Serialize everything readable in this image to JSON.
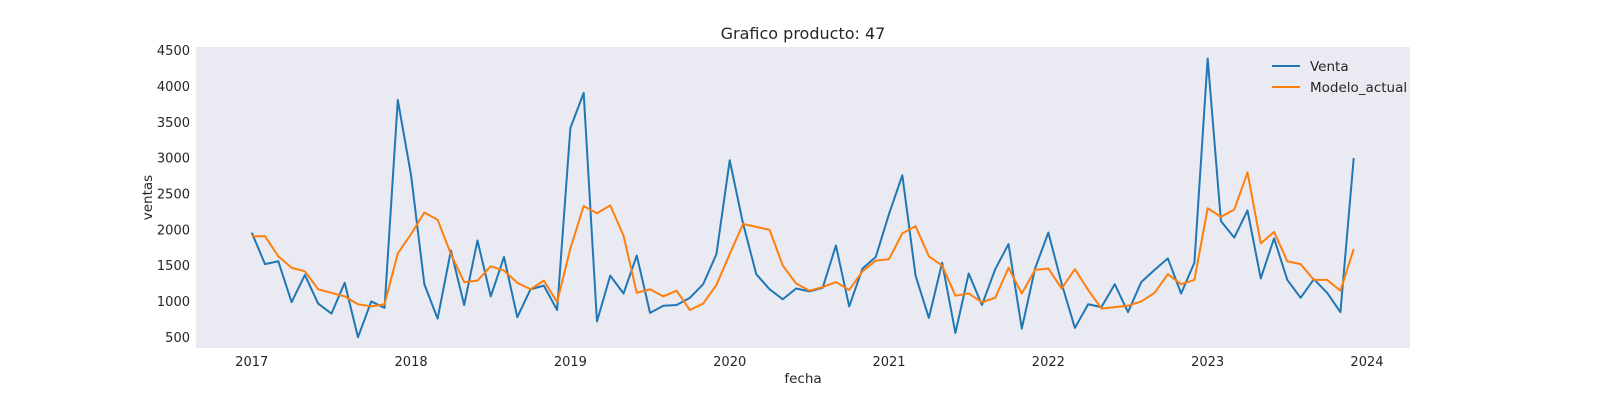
{
  "chart_data": {
    "type": "line",
    "title": "Grafico producto: 47",
    "xlabel": "fecha",
    "ylabel": "ventas",
    "x_start": "2017-01",
    "x_end": "2023-12",
    "x_frequency": "monthly",
    "xticks": [
      "2017",
      "2018",
      "2019",
      "2020",
      "2021",
      "2022",
      "2023",
      "2024"
    ],
    "yticks": [
      500,
      1000,
      1500,
      2000,
      2500,
      3000,
      3500,
      4000,
      4500
    ],
    "ylim": [
      350,
      4550
    ],
    "grid": false,
    "legend_position": "top-right",
    "background": "#eaeaf2",
    "series": [
      {
        "name": "Venta",
        "color": "#1f77b4",
        "values": [
          1960,
          1520,
          1560,
          990,
          1370,
          970,
          830,
          1260,
          500,
          1000,
          910,
          3810,
          2760,
          1240,
          760,
          1710,
          950,
          1850,
          1070,
          1620,
          780,
          1170,
          1220,
          880,
          3420,
          3910,
          720,
          1360,
          1110,
          1640,
          840,
          940,
          950,
          1050,
          1240,
          1660,
          2970,
          2090,
          1380,
          1170,
          1030,
          1180,
          1140,
          1190,
          1780,
          930,
          1460,
          1620,
          2220,
          2760,
          1360,
          770,
          1540,
          560,
          1390,
          950,
          1450,
          1800,
          620,
          1460,
          1960,
          1250,
          630,
          960,
          920,
          1240,
          850,
          1270,
          1440,
          1600,
          1110,
          1540,
          4390,
          2120,
          1890,
          2270,
          1320,
          1880,
          1300,
          1050,
          1310,
          1120,
          850,
          3000
        ]
      },
      {
        "name": "Modelo_actual",
        "color": "#ff7f0e",
        "values": [
          1910,
          1910,
          1630,
          1470,
          1420,
          1170,
          1120,
          1070,
          960,
          930,
          960,
          1670,
          1940,
          2240,
          2140,
          1660,
          1270,
          1290,
          1490,
          1430,
          1260,
          1170,
          1290,
          990,
          1740,
          2330,
          2230,
          2340,
          1920,
          1120,
          1170,
          1070,
          1150,
          880,
          970,
          1230,
          1660,
          2080,
          2040,
          2000,
          1500,
          1250,
          1150,
          1200,
          1270,
          1160,
          1420,
          1570,
          1590,
          1950,
          2050,
          1630,
          1500,
          1080,
          1110,
          990,
          1050,
          1470,
          1110,
          1440,
          1460,
          1180,
          1450,
          1160,
          900,
          920,
          940,
          1000,
          1120,
          1380,
          1240,
          1300,
          2300,
          2180,
          2280,
          2800,
          1810,
          1970,
          1560,
          1520,
          1300,
          1300,
          1150,
          1730
        ]
      }
    ]
  }
}
